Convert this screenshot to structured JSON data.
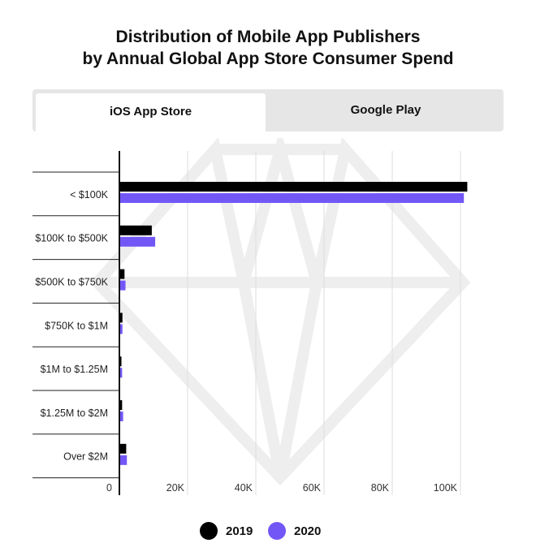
{
  "title_line1": "Distribution of Mobile App Publishers",
  "title_line2": "by Annual Global App Store Consumer Spend",
  "tabs": [
    {
      "label": "iOS App Store",
      "active": true
    },
    {
      "label": "Google Play",
      "active": false
    }
  ],
  "colors": {
    "series_2019": "#000000",
    "series_2020": "#7357f6",
    "tab_bg": "#e6e6e6",
    "watermark": "#eeeeee"
  },
  "watermark_icon": "diamond-icon",
  "chart_data": {
    "type": "bar",
    "orientation": "horizontal",
    "title": "Distribution of Mobile App Publishers by Annual Global App Store Consumer Spend",
    "categories": [
      "< $100K",
      "$100K to $500K",
      "$500K to $750K",
      "$750K to $1M",
      "$1M to $1.25M",
      "$1.25M to $2M",
      "Over $2M"
    ],
    "series": [
      {
        "name": "2019",
        "color": "#000000",
        "values": [
          102000,
          9500,
          1500,
          900,
          600,
          800,
          2000
        ]
      },
      {
        "name": "2020",
        "color": "#7357f6",
        "values": [
          101000,
          10500,
          1800,
          900,
          800,
          1100,
          2200
        ]
      }
    ],
    "x_ticks": [
      0,
      20000,
      40000,
      60000,
      80000,
      100000
    ],
    "x_tick_labels": [
      "0",
      "20K",
      "40K",
      "60K",
      "80K",
      "100K"
    ],
    "xlim": [
      0,
      110000
    ],
    "grid": true,
    "legend": "bottom-center"
  }
}
